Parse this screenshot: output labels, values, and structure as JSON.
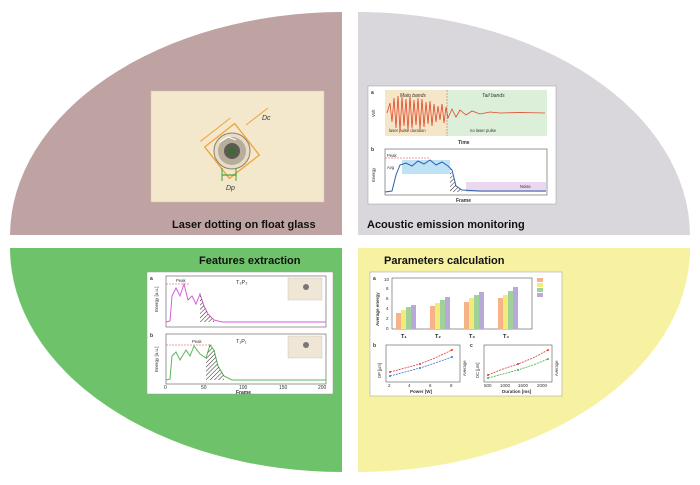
{
  "quadrants": {
    "top_left": {
      "label": "Laser dotting on float glass",
      "color": "#bfa2a2",
      "panel": {
        "dc_label": "Dc",
        "dp_label": "Dp"
      }
    },
    "top_right": {
      "label": "Acoustic emission monitoring",
      "color": "#d9d6dc",
      "panel": {
        "a_tag": "a",
        "main_bands": "Main bands",
        "tail_bands": "Tail bands",
        "laser_pulse_duration": "laser pulse duration",
        "no_laser_pulse": "no laser pulse",
        "y_axis_a": "Volt",
        "x_axis_a": "Time",
        "b_tag": "b",
        "y_axis_b": "Energy",
        "x_axis_b": "Frame",
        "peak": "Peak",
        "average": "Avg",
        "noise": "Noise"
      }
    },
    "bottom_left": {
      "label": "Features extraction",
      "color": "#6ec36a",
      "panel": {
        "a_tag": "a",
        "a_series": "T₃P₃",
        "b_tag": "b",
        "b_series": "T₁P₁",
        "peak": "Peak",
        "y_axis": "Energy [a.u.]",
        "x_axis": "Frame",
        "x_ticks": [
          "0",
          "50",
          "100",
          "150",
          "200"
        ]
      }
    },
    "bottom_right": {
      "label": "Parameters calculation",
      "color": "#f6f2a1",
      "panel": {
        "a_tag": "a",
        "y_axis_a": "Average energy",
        "groups": [
          "T₁",
          "T₂",
          "T₃",
          "T₄"
        ],
        "y_ticks": [
          "0",
          "2",
          "4",
          "6",
          "8",
          "10"
        ],
        "b_tag": "b",
        "x_axis_b": "Power [W]",
        "y_left_b": "DP [µm]",
        "y_right_b": "Average",
        "b_x_ticks": [
          "2",
          "4",
          "6",
          "8"
        ],
        "c_tag": "c",
        "x_axis_c": "Duration [ms]",
        "y_left_c": "DC [µm]",
        "y_right_c": "Average",
        "c_x_ticks": [
          "500",
          "1000",
          "1500",
          "2000"
        ]
      }
    }
  }
}
